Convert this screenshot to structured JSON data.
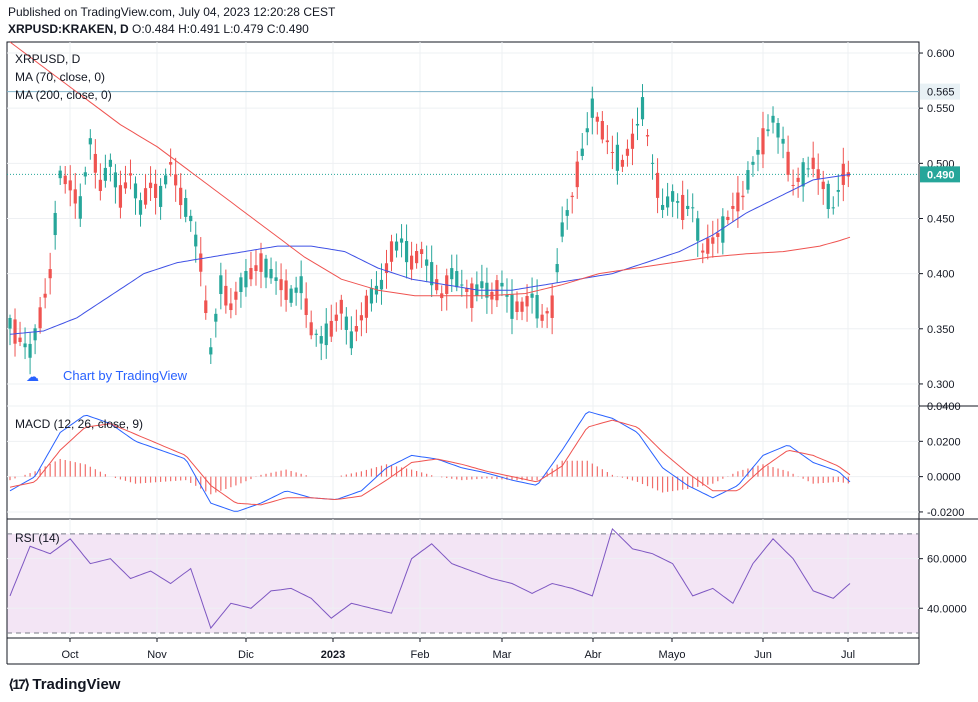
{
  "header": {
    "published": "Published on TradingView.com, July 04, 2023 12:20:28 CEST",
    "symbol": "XRPUSD:KRAKEN, D",
    "ohlc": "O:0.484 H:0.491 L:0.479 C:0.490"
  },
  "footer": {
    "brand": "TradingView"
  },
  "watermark": "Chart by TradingView",
  "colors": {
    "up": "#26a69a",
    "down": "#ef5350",
    "ma70": "#3f51e5",
    "ma200": "#ef5350",
    "macd": "#2962ff",
    "signal": "#ef5350",
    "rsi": "#7e57c2",
    "rsi_band": "#f3e5f5",
    "hline": "#7fb3c9",
    "lastprice": "#26a69a"
  },
  "chart_data": [
    {
      "type": "candlestick",
      "title": "XRPUSD, D",
      "legend": [
        "MA (70, close, 0)",
        "MA (200, close, 0)"
      ],
      "ylim": [
        0.28,
        0.61
      ],
      "yticks": [
        "0.600",
        "0.550",
        "0.500",
        "0.450",
        "0.400",
        "0.350",
        "0.300"
      ],
      "xticks": [
        "Oct",
        "Nov",
        "Dic",
        "2023",
        "Feb",
        "Mar",
        "Abr",
        "Mayo",
        "Jun",
        "Jul"
      ],
      "horizontal_line": {
        "value": 0.565,
        "label": "0.565"
      },
      "last_price": {
        "value": 0.49,
        "label": "0.490"
      },
      "close_path": [
        0.355,
        0.34,
        0.33,
        0.36,
        0.4,
        0.49,
        0.48,
        0.46,
        0.52,
        0.48,
        0.5,
        0.47,
        0.49,
        0.46,
        0.48,
        0.47,
        0.5,
        0.47,
        0.45,
        0.41,
        0.33,
        0.39,
        0.37,
        0.39,
        0.4,
        0.41,
        0.4,
        0.39,
        0.38,
        0.39,
        0.35,
        0.34,
        0.35,
        0.37,
        0.34,
        0.36,
        0.38,
        0.39,
        0.42,
        0.43,
        0.41,
        0.42,
        0.4,
        0.38,
        0.4,
        0.39,
        0.38,
        0.39,
        0.38,
        0.39,
        0.37,
        0.37,
        0.38,
        0.36,
        0.37,
        0.44,
        0.47,
        0.51,
        0.55,
        0.53,
        0.51,
        0.5,
        0.52,
        0.55,
        0.5,
        0.46,
        0.47,
        0.46,
        0.46,
        0.42,
        0.43,
        0.44,
        0.46,
        0.47,
        0.5,
        0.52,
        0.54,
        0.52,
        0.48,
        0.49,
        0.5,
        0.48,
        0.46,
        0.49,
        0.49
      ],
      "close_days": [
        0,
        6,
        12,
        18,
        24,
        30,
        36,
        42,
        48,
        54,
        60,
        66,
        72,
        78,
        84,
        90,
        96,
        102,
        108,
        114,
        120,
        126,
        132,
        138,
        144,
        150,
        156,
        162,
        168,
        174,
        180,
        186,
        192,
        198,
        204,
        210,
        216,
        222,
        228,
        234,
        240,
        246,
        252,
        258,
        264,
        270,
        276,
        282,
        288,
        294,
        300,
        306,
        312,
        318,
        324,
        330,
        336,
        342,
        348,
        354,
        360,
        366,
        372,
        378,
        384,
        390,
        396,
        402,
        408,
        414,
        420,
        426,
        432,
        438,
        444,
        450,
        456,
        462,
        468,
        474,
        480,
        486,
        492,
        498,
        502
      ],
      "ma70_path": [
        0.345,
        0.348,
        0.36,
        0.38,
        0.4,
        0.41,
        0.415,
        0.42,
        0.425,
        0.425,
        0.42,
        0.405,
        0.395,
        0.39,
        0.385,
        0.385,
        0.39,
        0.395,
        0.4,
        0.41,
        0.42,
        0.435,
        0.455,
        0.47,
        0.485,
        0.49
      ],
      "ma200_path": [
        0.61,
        0.585,
        0.56,
        0.535,
        0.515,
        0.49,
        0.465,
        0.44,
        0.415,
        0.395,
        0.385,
        0.38,
        0.38,
        0.38,
        0.382,
        0.39,
        0.4,
        0.405,
        0.41,
        0.415,
        0.418,
        0.42,
        0.425,
        0.43,
        0.433
      ],
      "ma_days_70": [
        0,
        20,
        40,
        60,
        80,
        100,
        120,
        140,
        160,
        180,
        200,
        220,
        240,
        260,
        280,
        300,
        320,
        340,
        360,
        380,
        400,
        420,
        440,
        460,
        480,
        502
      ],
      "ma_days_200": [
        0,
        22,
        44,
        66,
        88,
        110,
        132,
        154,
        176,
        198,
        220,
        242,
        264,
        286,
        308,
        330,
        352,
        374,
        396,
        418,
        440,
        462,
        484,
        496,
        502
      ]
    },
    {
      "type": "line",
      "title": "MACD (12, 26, close, 9)",
      "ylim": [
        -0.024,
        0.04
      ],
      "yticks": [
        "0.0400",
        "0.0200",
        "0.0000",
        "-0.0200"
      ],
      "macd_days": [
        0,
        15,
        30,
        45,
        60,
        75,
        90,
        105,
        120,
        135,
        150,
        165,
        180,
        195,
        210,
        225,
        240,
        255,
        270,
        285,
        300,
        315,
        330,
        345,
        360,
        375,
        390,
        405,
        420,
        435,
        450,
        465,
        480,
        495,
        502
      ],
      "macd_values": [
        -0.008,
        0.0,
        0.025,
        0.035,
        0.03,
        0.02,
        0.015,
        0.01,
        -0.015,
        -0.02,
        -0.015,
        -0.008,
        -0.012,
        -0.013,
        -0.008,
        0.005,
        0.012,
        0.01,
        0.005,
        0.002,
        -0.002,
        -0.005,
        0.015,
        0.037,
        0.033,
        0.025,
        0.005,
        -0.005,
        -0.012,
        -0.005,
        0.012,
        0.018,
        0.008,
        0.003,
        -0.003
      ],
      "signal_values": [
        -0.006,
        -0.003,
        0.015,
        0.028,
        0.03,
        0.024,
        0.018,
        0.012,
        -0.005,
        -0.015,
        -0.016,
        -0.012,
        -0.012,
        -0.013,
        -0.011,
        -0.002,
        0.008,
        0.01,
        0.007,
        0.003,
        0.0,
        -0.003,
        0.006,
        0.028,
        0.032,
        0.028,
        0.014,
        0.002,
        -0.008,
        -0.008,
        0.005,
        0.015,
        0.012,
        0.006,
        0.001
      ]
    },
    {
      "type": "line",
      "title": "RSI (14)",
      "ylim": [
        28,
        76
      ],
      "yticks": [
        "60.0000",
        "40.0000"
      ],
      "band": [
        30,
        70
      ],
      "rsi_days": [
        0,
        12,
        24,
        36,
        48,
        60,
        72,
        84,
        96,
        108,
        120,
        132,
        144,
        156,
        168,
        180,
        192,
        204,
        216,
        228,
        240,
        252,
        264,
        276,
        288,
        300,
        312,
        324,
        336,
        348,
        360,
        372,
        384,
        396,
        408,
        420,
        432,
        444,
        456,
        468,
        480,
        492,
        502
      ],
      "rsi_values": [
        45,
        65,
        62,
        68,
        58,
        60,
        52,
        55,
        50,
        56,
        32,
        42,
        40,
        47,
        48,
        44,
        36,
        42,
        40,
        38,
        60,
        66,
        58,
        55,
        52,
        50,
        46,
        50,
        48,
        45,
        72,
        64,
        62,
        58,
        45,
        48,
        42,
        58,
        68,
        60,
        47,
        44,
        50
      ]
    }
  ]
}
